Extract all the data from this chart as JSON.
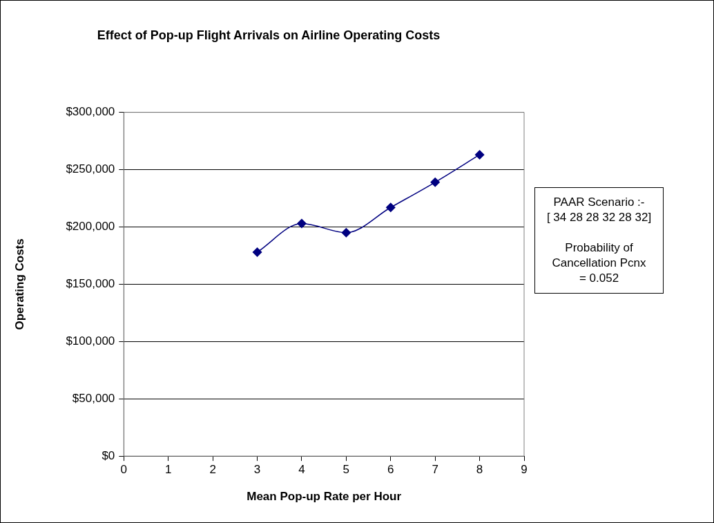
{
  "chart_data": {
    "type": "line",
    "title": "Effect of Pop-up Flight Arrivals on Airline Operating Costs",
    "xlabel": "Mean Pop-up Rate per Hour",
    "ylabel": "Operating Costs",
    "x": [
      3,
      4,
      5,
      6,
      7,
      8
    ],
    "series": [
      {
        "color": "#000080",
        "values": [
          178000,
          203000,
          195000,
          217000,
          239000,
          263000
        ]
      }
    ],
    "xlim": [
      0,
      9
    ],
    "xticks": [
      0,
      1,
      2,
      3,
      4,
      5,
      6,
      7,
      8,
      9
    ],
    "ylim": [
      0,
      300000
    ],
    "yticks": [
      {
        "value": 0,
        "label": "$0"
      },
      {
        "value": 50000,
        "label": "$50,000"
      },
      {
        "value": 100000,
        "label": "$100,000"
      },
      {
        "value": 150000,
        "label": "$150,000"
      },
      {
        "value": 200000,
        "label": "$200,000"
      },
      {
        "value": 250000,
        "label": "$250,000"
      },
      {
        "value": 300000,
        "label": "$300,000"
      }
    ],
    "grid": "y",
    "legend": false,
    "marker": "diamond",
    "line_style": "solid",
    "annotations": [
      "PAAR Scenario :-\n[ 34 28 28 32 28 32]\n\nProbability of\nCancellation Pcnx\n= 0.052"
    ]
  }
}
